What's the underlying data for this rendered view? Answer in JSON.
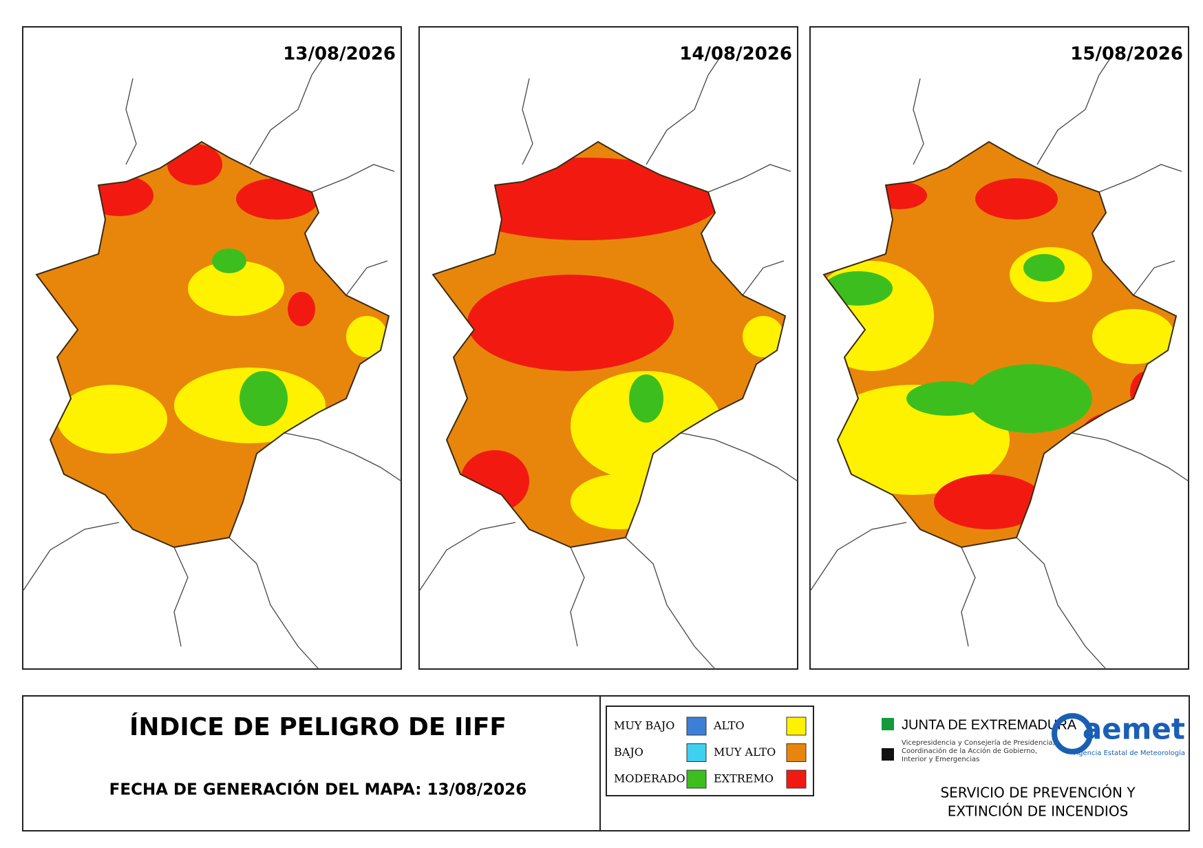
{
  "maps": [
    {
      "date": "13/08/2026"
    },
    {
      "date": "14/08/2026"
    },
    {
      "date": "15/08/2026"
    }
  ],
  "footer": {
    "title": "ÍNDICE DE PELIGRO DE IIFF",
    "generation": "FECHA DE GENERACIÓN DEL MAPA: 13/08/2026"
  },
  "legend": [
    {
      "label": "MUY BAJO",
      "color": "#3d7fd6"
    },
    {
      "label": "ALTO",
      "color": "#fff200"
    },
    {
      "label": "BAJO",
      "color": "#3fd0f0"
    },
    {
      "label": "MUY ALTO",
      "color": "#e8860c"
    },
    {
      "label": "MODERADO",
      "color": "#3cbf1e"
    },
    {
      "label": "EXTREMO",
      "color": "#f21a10"
    }
  ],
  "logos": {
    "junta": "JUNTA DE EXTREMADURA",
    "junta_sub": [
      "Vicepresidencia y Consejería de Presidencia,",
      "Coordinación de la Acción de Gobierno,",
      "Interior y Emergencias"
    ],
    "aemet": "aemet",
    "aemet_sub": "Agencia Estatal de Meteorología",
    "service": [
      "SERVICIO DE PREVENCIÓN Y",
      "EXTINCIÓN DE INCENDIOS"
    ]
  }
}
